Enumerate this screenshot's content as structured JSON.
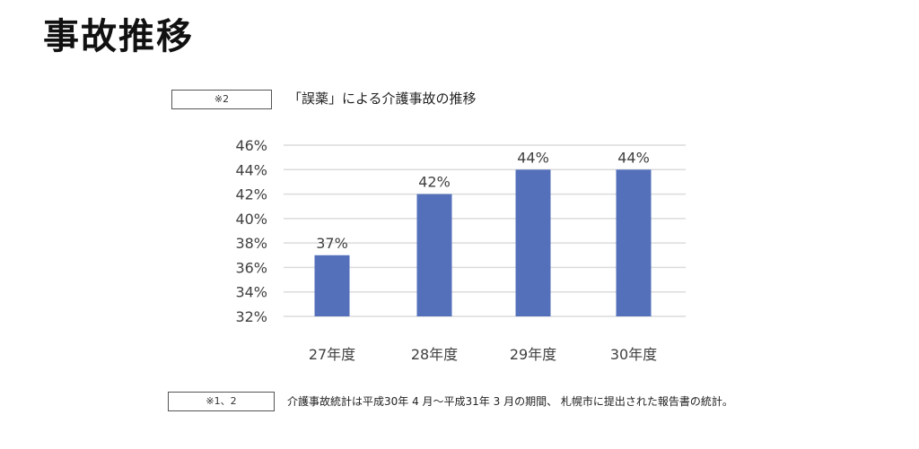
{
  "page": {
    "title": "事故推移",
    "ref_top": "※2",
    "chart_heading": "「誤薬」による介護事故の推移",
    "ref_bottom": "※1、2",
    "footnote": "介護事故統計は平成30年 4 月～平成31年 3 月の期間、 札幌市に提出された報告書の統計。"
  },
  "chart_data": {
    "type": "bar",
    "categories": [
      "27年度",
      "28年度",
      "29年度",
      "30年度"
    ],
    "values": [
      37,
      42,
      44,
      44
    ],
    "data_labels": [
      "37%",
      "42%",
      "44%",
      "44%"
    ],
    "yticks": [
      "32%",
      "34%",
      "36%",
      "38%",
      "40%",
      "42%",
      "44%",
      "46%"
    ],
    "ylim": [
      32,
      46
    ],
    "grid": true,
    "bar_color": "#5470bb",
    "title": "",
    "xlabel": "",
    "ylabel": ""
  }
}
